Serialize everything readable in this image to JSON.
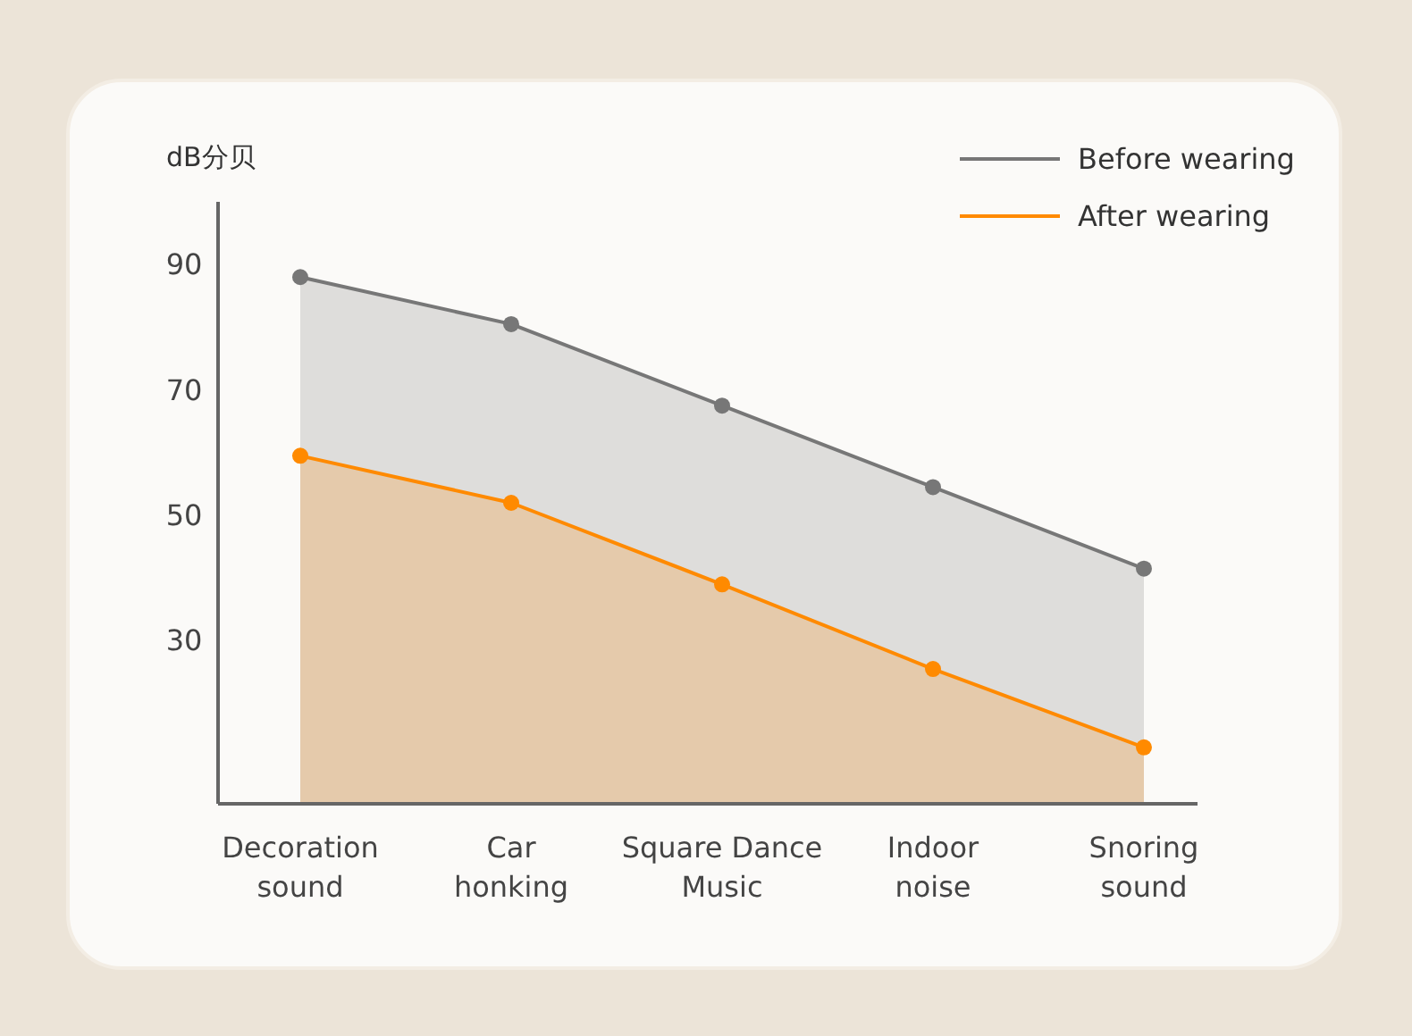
{
  "chart_data": {
    "type": "area",
    "ylabel": "dB分贝",
    "categories": [
      "Decoration sound",
      "Car honking",
      "Square Dance Music",
      "Indoor noise",
      "Snoring sound"
    ],
    "series": [
      {
        "name": "Before wearing",
        "color": "#777777",
        "values": [
          88,
          80.5,
          67.5,
          54.5,
          41.5
        ]
      },
      {
        "name": "After wearing",
        "color": "#ff8a00",
        "values": [
          59.5,
          52,
          39,
          25.5,
          13
        ]
      }
    ],
    "ylim": [
      4,
      100
    ],
    "yticks": [
      30,
      50,
      70,
      90
    ],
    "marker": "circle",
    "legend": "top right"
  }
}
